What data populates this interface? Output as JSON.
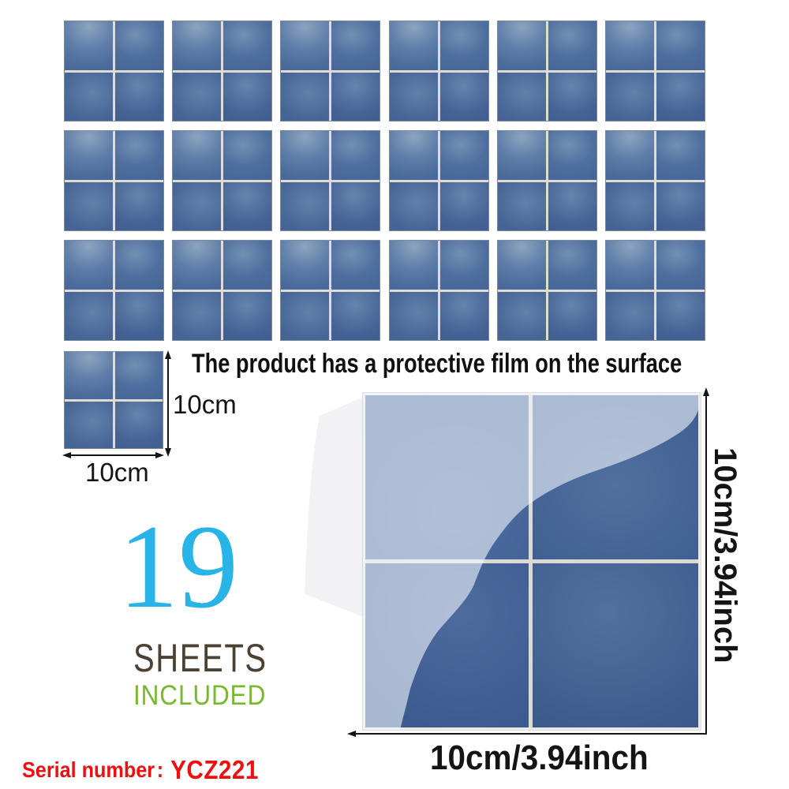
{
  "product": {
    "film_note": "The product has a protective film on the surface",
    "sheet_count": "19",
    "sheets_label": "SHEETS",
    "included_label": "INCLUDED"
  },
  "serial": {
    "label": "Serial number",
    "separator": ":",
    "value": "YCZ221"
  },
  "dimensions": {
    "small_tile_width": "10cm",
    "small_tile_height": "10cm",
    "big_tile_width": "10cm/3.94inch",
    "big_tile_height": "10cm/3.94inch"
  },
  "layout_counts": {
    "grid_rows": 3,
    "grid_cols": 6,
    "single_sample_tiles": 1,
    "total_sheets": 19
  },
  "colors": {
    "sheet_count": "#29b4e8",
    "sheets_label": "#4a4033",
    "included_label": "#76b82e",
    "serial": "#ee1010",
    "tile_dark": "#3e5d91",
    "tile_film_light": "#a9bdd9",
    "grout": "#dfddd3"
  }
}
